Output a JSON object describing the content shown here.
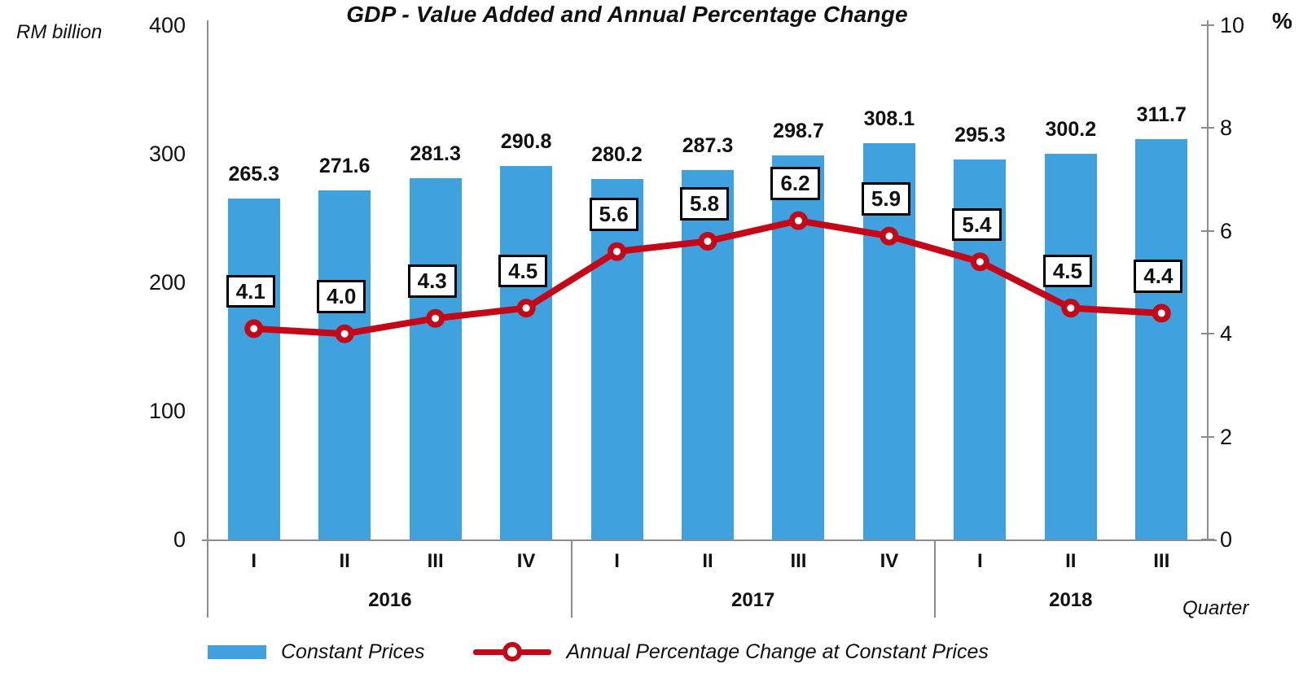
{
  "title": "GDP - Value Added and Annual Percentage Change",
  "axes": {
    "left_unit_label": "RM billion",
    "right_unit_label": "%",
    "x_axis_title": "Quarter",
    "left_ticks": [
      "400",
      "300",
      "200",
      "100",
      "0"
    ],
    "right_ticks": [
      "10",
      "8",
      "6",
      "4",
      "2",
      "0"
    ]
  },
  "legend": {
    "bar_label": "Constant Prices",
    "line_label": "Annual Percentage Change at Constant Prices"
  },
  "colors": {
    "bar": "#3FA2DF",
    "line": "#C40818",
    "axis": "#8C8C8C",
    "text": "#111111",
    "label_box_border": "#000000",
    "label_box_fill": "#FFFFFF"
  },
  "chart_data": {
    "type": "bar+line",
    "title": "GDP - Value Added and Annual Percentage Change",
    "x_groups": [
      {
        "year": "2016",
        "quarters": [
          "I",
          "II",
          "III",
          "IV"
        ]
      },
      {
        "year": "2017",
        "quarters": [
          "I",
          "II",
          "III",
          "IV"
        ]
      },
      {
        "year": "2018",
        "quarters": [
          "I",
          "II",
          "III"
        ]
      }
    ],
    "series": [
      {
        "name": "Constant Prices",
        "type": "bar",
        "axis": "left",
        "unit": "RM billion",
        "values": [
          265.3,
          271.6,
          281.3,
          290.8,
          280.2,
          287.3,
          298.7,
          308.1,
          295.3,
          300.2,
          311.7
        ]
      },
      {
        "name": "Annual Percentage Change at Constant Prices",
        "type": "line",
        "axis": "right",
        "unit": "%",
        "values": [
          4.1,
          4.0,
          4.3,
          4.5,
          5.6,
          5.8,
          6.2,
          5.9,
          5.4,
          4.5,
          4.4
        ]
      }
    ],
    "left_ylim": [
      0,
      400
    ],
    "right_ylim": [
      0,
      10
    ],
    "grid": false,
    "legend_position": "bottom"
  }
}
